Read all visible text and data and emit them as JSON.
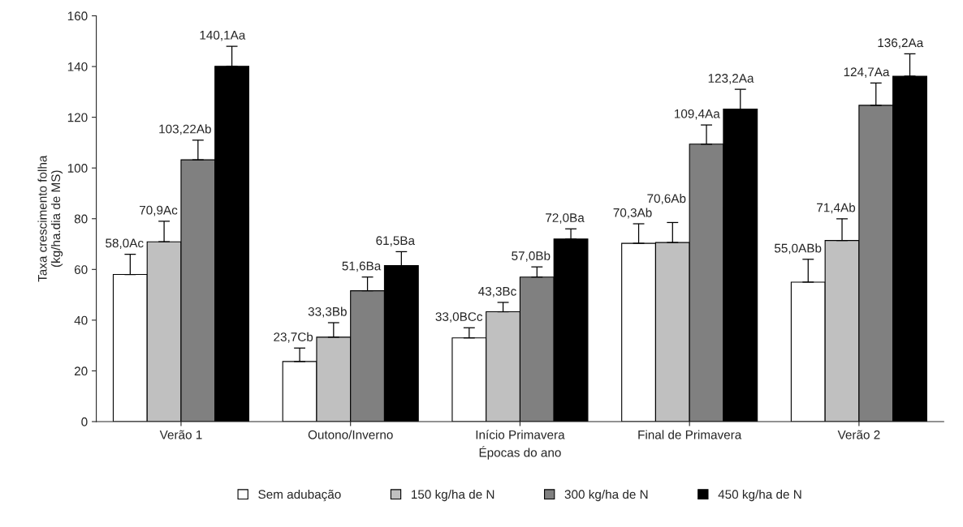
{
  "chart_data": {
    "type": "bar",
    "xlabel": "Épocas do ano",
    "ylabel": "Taxa crescimento folha\n(kg/ha.dia de MS)",
    "categories": [
      "Verão 1",
      "Outono/Inverno",
      "Início Primavera",
      "Final de Primavera",
      "Verão 2"
    ],
    "series": [
      {
        "name": "Sem adubação",
        "color": "#ffffff",
        "values": [
          58.0,
          23.7,
          33.0,
          70.3,
          55.0
        ],
        "errors": [
          [
            58.0,
            66
          ],
          [
            23.7,
            29
          ],
          [
            33.0,
            37
          ],
          [
            70.3,
            78
          ],
          [
            55.0,
            64
          ]
        ],
        "value_labels": [
          "58,0Ac",
          "23,7Cb",
          "33,0BCc",
          "70,3Ab",
          "55,0ABb"
        ]
      },
      {
        "name": "150 kg/ha de N",
        "color": "#c0c0c0",
        "values": [
          70.9,
          33.3,
          43.3,
          70.6,
          71.4
        ],
        "errors": [
          [
            70.9,
            79
          ],
          [
            33.3,
            39
          ],
          [
            43.3,
            47
          ],
          [
            70.6,
            78.5
          ],
          [
            71.4,
            80
          ]
        ],
        "value_labels": [
          "70,9Ac",
          "33,3Bb",
          "43,3Bc",
          "70,6Ab",
          "71,4Ab"
        ]
      },
      {
        "name": "300 kg/ha de N",
        "color": "#808080",
        "values": [
          103.22,
          51.6,
          57.0,
          109.4,
          124.7
        ],
        "errors": [
          [
            103.22,
            111
          ],
          [
            51.6,
            57
          ],
          [
            57.0,
            61
          ],
          [
            109.4,
            117
          ],
          [
            124.7,
            133.5
          ]
        ],
        "value_labels": [
          "103,22Ab",
          "51,6Ba",
          "57,0Bb",
          "109,4Aa",
          "124,7Aa"
        ]
      },
      {
        "name": "450 kg/ha de N",
        "color": "#000000",
        "values": [
          140.1,
          61.5,
          72.0,
          123.2,
          136.2
        ],
        "errors": [
          [
            140.1,
            148
          ],
          [
            61.5,
            67
          ],
          [
            72.0,
            76
          ],
          [
            123.2,
            131
          ],
          [
            136.2,
            145
          ]
        ],
        "value_labels": [
          "140,1Aa",
          "61,5Ba",
          "72,0Ba",
          "123,2Aa",
          "136,2Aa"
        ]
      }
    ],
    "ylim": [
      0,
      160
    ],
    "yticks": [
      0,
      20,
      40,
      60,
      80,
      100,
      120,
      140,
      160
    ],
    "grid": false,
    "legend": "bottom"
  }
}
